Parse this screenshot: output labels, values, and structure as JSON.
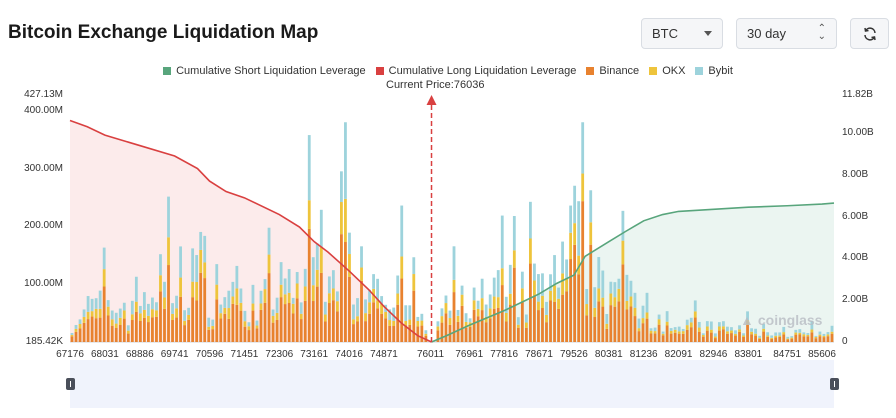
{
  "header": {
    "title": "Bitcoin Exchange Liquidation Map",
    "coin_select": "BTC",
    "range_select": "30 day",
    "refresh_icon": "refresh-icon"
  },
  "colors": {
    "short_cumulative": "#58a57c",
    "long_cumulative": "#d94040",
    "binance": "#e8822f",
    "okx": "#eec43c",
    "bybit": "#9dd3dc",
    "short_fill": "#e7f3ee",
    "long_fill": "#fbe7e8"
  },
  "legend": [
    {
      "label": "Cumulative Short Liquidation Leverage",
      "color": "#58a57c"
    },
    {
      "label": "Cumulative Long Liquidation Leverage",
      "color": "#d94040"
    },
    {
      "label": "Binance",
      "color": "#e8822f"
    },
    {
      "label": "OKX",
      "color": "#eec43c"
    },
    {
      "label": "Bybit",
      "color": "#9dd3dc"
    }
  ],
  "current_price_label": "Current Price:76036",
  "watermark": "coinglass",
  "chart_data": {
    "type": "bar",
    "title": "Bitcoin Exchange Liquidation Map",
    "current_price": 76036,
    "x_range": [
      67176,
      85900
    ],
    "x_tick_labels": [
      "67176",
      "68031",
      "68886",
      "69741",
      "70596",
      "71451",
      "72306",
      "73161",
      "74016",
      "74871",
      "76011",
      "76961",
      "77816",
      "78671",
      "79526",
      "80381",
      "81236",
      "82091",
      "82946",
      "83801",
      "84751",
      "85606"
    ],
    "y_left": {
      "ticks": [
        185420,
        100000000,
        200000000,
        300000000,
        400000000,
        427130000
      ],
      "tick_labels": [
        "185.42K",
        "100.00M",
        "200.00M",
        "300.00M",
        "400.00M",
        "427.13M"
      ],
      "range": [
        185420,
        427130000
      ]
    },
    "y_right": {
      "ticks": [
        0,
        2000000000,
        4000000000,
        6000000000,
        8000000000,
        10000000000,
        11820000000
      ],
      "tick_labels": [
        "0",
        "2.00B",
        "4.00B",
        "6.00B",
        "8.00B",
        "10.00B",
        "11.82B"
      ],
      "range": [
        0,
        11820000000
      ]
    },
    "bar_profile": [
      [
        67176,
        60
      ],
      [
        67600,
        80
      ],
      [
        68031,
        95
      ],
      [
        68500,
        90
      ],
      [
        68886,
        110
      ],
      [
        69300,
        150
      ],
      [
        69741,
        140
      ],
      [
        70200,
        200
      ],
      [
        70596,
        160
      ],
      [
        71000,
        130
      ],
      [
        71451,
        120
      ],
      [
        71900,
        100
      ],
      [
        72306,
        130
      ],
      [
        72800,
        150
      ],
      [
        73161,
        230
      ],
      [
        73500,
        260
      ],
      [
        73800,
        280
      ],
      [
        74016,
        240
      ],
      [
        74400,
        200
      ],
      [
        74871,
        170
      ],
      [
        75400,
        120
      ],
      [
        75800,
        50
      ],
      [
        76011,
        20
      ],
      [
        76300,
        70
      ],
      [
        76961,
        120
      ],
      [
        77400,
        100
      ],
      [
        77816,
        130
      ],
      [
        78200,
        120
      ],
      [
        78671,
        150
      ],
      [
        79100,
        140
      ],
      [
        79526,
        250
      ],
      [
        79800,
        300
      ],
      [
        80100,
        200
      ],
      [
        80381,
        160
      ],
      [
        80800,
        120
      ],
      [
        81236,
        110
      ],
      [
        81700,
        70
      ],
      [
        82091,
        50
      ],
      [
        82500,
        40
      ],
      [
        82946,
        35
      ],
      [
        83400,
        35
      ],
      [
        83801,
        30
      ],
      [
        84300,
        30
      ],
      [
        84751,
        25
      ],
      [
        85200,
        20
      ],
      [
        85606,
        20
      ],
      [
        85900,
        15
      ]
    ],
    "series": [
      {
        "name": "Cumulative Long Liquidation Leverage",
        "axis": "right",
        "points": [
          [
            67176,
            10.6
          ],
          [
            67600,
            10.3
          ],
          [
            68031,
            9.9
          ],
          [
            68886,
            9.4
          ],
          [
            69741,
            8.9
          ],
          [
            70300,
            8.3
          ],
          [
            70596,
            7.7
          ],
          [
            71000,
            7.2
          ],
          [
            71451,
            6.9
          ],
          [
            72306,
            6.1
          ],
          [
            72800,
            5.5
          ],
          [
            73161,
            4.8
          ],
          [
            73500,
            4.3
          ],
          [
            74016,
            3.4
          ],
          [
            74500,
            2.5
          ],
          [
            74871,
            1.7
          ],
          [
            75300,
            0.9
          ],
          [
            75700,
            0.3
          ],
          [
            76036,
            0.0
          ]
        ]
      },
      {
        "name": "Cumulative Short Liquidation Leverage",
        "axis": "right",
        "points": [
          [
            76036,
            0.0
          ],
          [
            76400,
            0.3
          ],
          [
            76961,
            0.8
          ],
          [
            77816,
            1.5
          ],
          [
            78671,
            2.3
          ],
          [
            79100,
            2.8
          ],
          [
            79526,
            3.2
          ],
          [
            79800,
            4.1
          ],
          [
            80381,
            4.8
          ],
          [
            80800,
            5.3
          ],
          [
            81236,
            5.8
          ],
          [
            81700,
            6.1
          ],
          [
            82091,
            6.25
          ],
          [
            82946,
            6.35
          ],
          [
            83801,
            6.45
          ],
          [
            84751,
            6.52
          ],
          [
            85606,
            6.6
          ],
          [
            85900,
            6.65
          ]
        ]
      }
    ]
  }
}
